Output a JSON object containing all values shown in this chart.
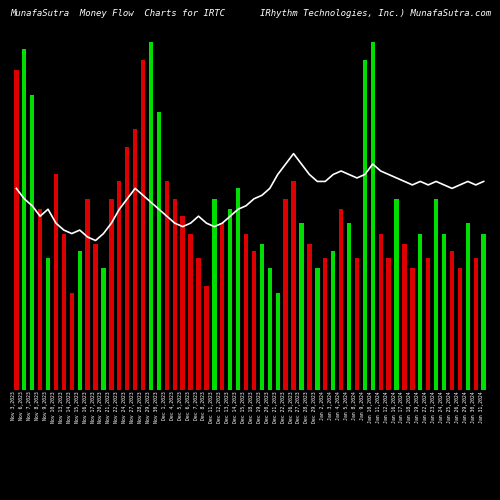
{
  "title1": "MunafaSutra  Money Flow  Charts for IRTC",
  "title2": "IRhythm Technologies, Inc.) MunafaSutra.com",
  "background_color": "#000000",
  "bar_colors": [
    "red",
    "green",
    "green",
    "red",
    "green",
    "red",
    "red",
    "red",
    "green",
    "red",
    "red",
    "green",
    "red",
    "red",
    "red",
    "red",
    "red",
    "green",
    "green",
    "red",
    "red",
    "red",
    "red",
    "red",
    "red",
    "green",
    "red",
    "green",
    "green",
    "red",
    "red",
    "green",
    "green",
    "green",
    "red",
    "red",
    "green",
    "red",
    "green",
    "red",
    "green",
    "red",
    "green",
    "red",
    "green",
    "green",
    "red",
    "red",
    "green",
    "red",
    "red",
    "green",
    "red",
    "green",
    "green",
    "red",
    "red",
    "green",
    "red",
    "green"
  ],
  "bar_heights": [
    92,
    98,
    85,
    52,
    38,
    62,
    45,
    28,
    40,
    55,
    42,
    35,
    55,
    60,
    70,
    75,
    95,
    100,
    80,
    60,
    55,
    50,
    45,
    38,
    30,
    55,
    48,
    52,
    58,
    45,
    40,
    42,
    35,
    28,
    55,
    60,
    48,
    42,
    35,
    38,
    40,
    52,
    48,
    38,
    95,
    100,
    45,
    38,
    55,
    42,
    35,
    45,
    38,
    55,
    45,
    40,
    35,
    48,
    38,
    45
  ],
  "line_values": [
    58,
    55,
    53,
    50,
    52,
    48,
    46,
    45,
    46,
    44,
    43,
    45,
    48,
    52,
    55,
    58,
    56,
    54,
    52,
    50,
    48,
    47,
    48,
    50,
    48,
    47,
    48,
    50,
    52,
    53,
    55,
    56,
    58,
    62,
    65,
    68,
    65,
    62,
    60,
    60,
    62,
    63,
    62,
    61,
    62,
    65,
    63,
    62,
    61,
    60,
    59,
    60,
    59,
    60,
    59,
    58,
    59,
    60,
    59,
    60
  ],
  "xlabels": [
    "Nov 3,2023",
    "Nov 6,2023",
    "Nov 7,2023",
    "Nov 8,2023",
    "Nov 9,2023",
    "Nov 10,2023",
    "Nov 13,2023",
    "Nov 14,2023",
    "Nov 15,2023",
    "Nov 16,2023",
    "Nov 17,2023",
    "Nov 20,2023",
    "Nov 21,2023",
    "Nov 22,2023",
    "Nov 24,2023",
    "Nov 27,2023",
    "Nov 28,2023",
    "Nov 29,2023",
    "Nov 30,2023",
    "Dec 1,2023",
    "Dec 4,2023",
    "Dec 5,2023",
    "Dec 6,2023",
    "Dec 7,2023",
    "Dec 8,2023",
    "Dec 11,2023",
    "Dec 12,2023",
    "Dec 13,2023",
    "Dec 14,2023",
    "Dec 15,2023",
    "Dec 18,2023",
    "Dec 19,2023",
    "Dec 20,2023",
    "Dec 21,2023",
    "Dec 22,2023",
    "Dec 26,2023",
    "Dec 27,2023",
    "Dec 28,2023",
    "Dec 29,2023",
    "Jan 2,2024",
    "Jan 3,2024",
    "Jan 4,2024",
    "Jan 5,2024",
    "Jan 8,2024",
    "Jan 9,2024",
    "Jan 10,2024",
    "Jan 11,2024",
    "Jan 12,2024",
    "Jan 16,2024",
    "Jan 17,2024",
    "Jan 18,2024",
    "Jan 19,2024",
    "Jan 22,2024",
    "Jan 23,2024",
    "Jan 24,2024",
    "Jan 25,2024",
    "Jan 26,2024",
    "Jan 29,2024",
    "Jan 30,2024",
    "Jan 31,2024"
  ],
  "title_fontsize": 6.5,
  "tick_fontsize": 3.5,
  "line_color": "#ffffff",
  "line_width": 1.2,
  "green_color": "#00dd00",
  "red_color": "#dd0000"
}
